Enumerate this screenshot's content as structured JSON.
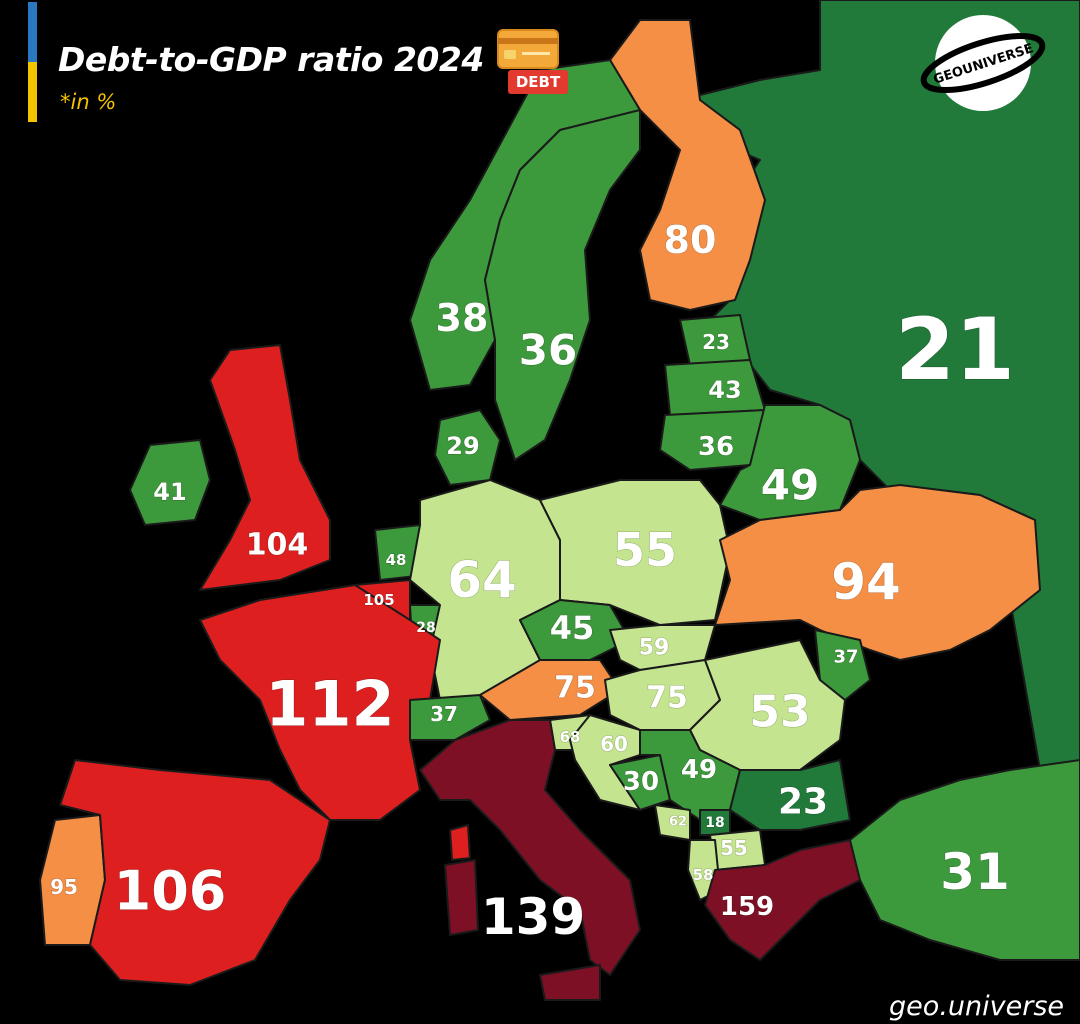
{
  "header": {
    "title": "Debt-to-GDP ratio 2024",
    "subtitle": "*in %",
    "card_tag": "DEBT"
  },
  "logo": {
    "text": "GEOUNIVERSE"
  },
  "watermark": "geo.universe",
  "colors": {
    "very_low": "#217a3a",
    "low": "#3d9a3c",
    "medium": "#c4e48f",
    "high": "#f58f45",
    "very_high": "#dd1f1f",
    "extreme": "#7d1024",
    "ocean": "#000000"
  },
  "countries": [
    {
      "id": "russia",
      "value": "21",
      "color": "#217a3a"
    },
    {
      "id": "finland",
      "value": "80",
      "color": "#f58f45"
    },
    {
      "id": "norway",
      "value": "38",
      "color": "#3d9a3c"
    },
    {
      "id": "sweden",
      "value": "36",
      "color": "#3d9a3c"
    },
    {
      "id": "denmark",
      "value": "29",
      "color": "#3d9a3c"
    },
    {
      "id": "estonia",
      "value": "23",
      "color": "#3d9a3c"
    },
    {
      "id": "latvia",
      "value": "43",
      "color": "#3d9a3c"
    },
    {
      "id": "lithuania",
      "value": "36",
      "color": "#3d9a3c"
    },
    {
      "id": "belarus",
      "value": "49",
      "color": "#3d9a3c"
    },
    {
      "id": "ireland",
      "value": "41",
      "color": "#3d9a3c"
    },
    {
      "id": "uk",
      "value": "104",
      "color": "#dd1f1f"
    },
    {
      "id": "netherlands",
      "value": "48",
      "color": "#3d9a3c"
    },
    {
      "id": "belgium",
      "value": "105",
      "color": "#dd1f1f"
    },
    {
      "id": "luxembourg",
      "value": "28",
      "color": "#3d9a3c"
    },
    {
      "id": "germany",
      "value": "64",
      "color": "#c4e48f"
    },
    {
      "id": "poland",
      "value": "55",
      "color": "#c4e48f"
    },
    {
      "id": "ukraine",
      "value": "94",
      "color": "#f58f45"
    },
    {
      "id": "czechia",
      "value": "45",
      "color": "#3d9a3c"
    },
    {
      "id": "slovakia",
      "value": "59",
      "color": "#c4e48f"
    },
    {
      "id": "moldova",
      "value": "37",
      "color": "#3d9a3c"
    },
    {
      "id": "france",
      "value": "112",
      "color": "#dd1f1f"
    },
    {
      "id": "switzerland",
      "value": "37",
      "color": "#3d9a3c"
    },
    {
      "id": "austria",
      "value": "75",
      "color": "#f58f45"
    },
    {
      "id": "hungary",
      "value": "75",
      "color": "#c4e48f"
    },
    {
      "id": "romania",
      "value": "53",
      "color": "#c4e48f"
    },
    {
      "id": "slovenia",
      "value": "68",
      "color": "#c4e48f"
    },
    {
      "id": "croatia",
      "value": "60",
      "color": "#c4e48f"
    },
    {
      "id": "bosnia",
      "value": "30",
      "color": "#3d9a3c"
    },
    {
      "id": "serbia",
      "value": "49",
      "color": "#3d9a3c"
    },
    {
      "id": "bulgaria",
      "value": "23",
      "color": "#217a3a"
    },
    {
      "id": "montenegro",
      "value": "62",
      "color": "#c4e48f"
    },
    {
      "id": "kosovo",
      "value": "18",
      "color": "#217a3a"
    },
    {
      "id": "north_macedonia",
      "value": "55",
      "color": "#c4e48f"
    },
    {
      "id": "albania",
      "value": "58",
      "color": "#c4e48f"
    },
    {
      "id": "greece",
      "value": "159",
      "color": "#7d1024"
    },
    {
      "id": "turkey",
      "value": "31",
      "color": "#3d9a3c"
    },
    {
      "id": "portugal",
      "value": "95",
      "color": "#f58f45"
    },
    {
      "id": "spain",
      "value": "106",
      "color": "#dd1f1f"
    },
    {
      "id": "italy",
      "value": "139",
      "color": "#7d1024"
    }
  ]
}
